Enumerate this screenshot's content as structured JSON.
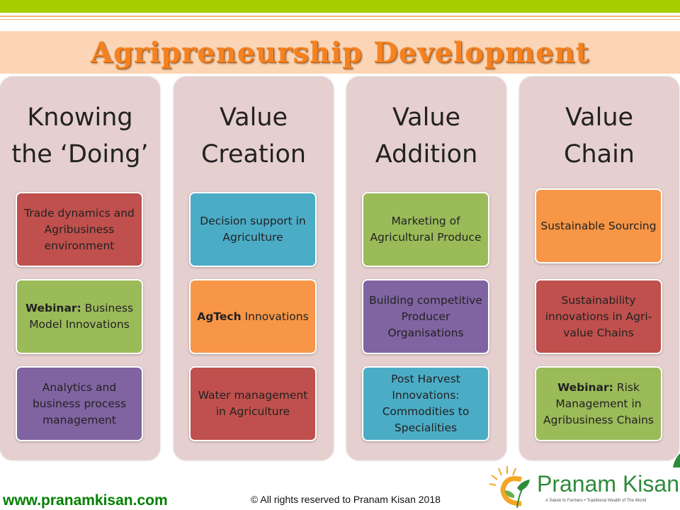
{
  "title": "Agripreneurship Development",
  "columns": [
    {
      "title_lines": [
        "Knowing",
        "the ‘Doing’"
      ],
      "boxes": [
        {
          "bold": "",
          "text": "Trade dynamics and Agribusiness environment",
          "color": "#c0504d"
        },
        {
          "bold": "Webinar:",
          "text": " Business Model Innovations",
          "color": "#9bbb59"
        },
        {
          "bold": "",
          "text": "Analytics and business process management",
          "color": "#8064a2"
        }
      ]
    },
    {
      "title_lines": [
        "Value",
        "Creation"
      ],
      "boxes": [
        {
          "bold": "",
          "text": "Decision support in Agriculture",
          "color": "#4bacc6"
        },
        {
          "bold": "AgTech",
          "text": " Innovations",
          "color": "#f79646"
        },
        {
          "bold": "",
          "text": "Water management in Agriculture",
          "color": "#c0504d"
        }
      ]
    },
    {
      "title_lines": [
        "Value",
        "Addition"
      ],
      "boxes": [
        {
          "bold": "",
          "text": "Marketing of Agricultural Produce",
          "color": "#9bbb59"
        },
        {
          "bold": "",
          "text": "Building competitive Producer Organisations",
          "color": "#8064a2"
        },
        {
          "bold": "",
          "text": "Post Harvest Innovations: Commodities to Specialities",
          "color": "#4bacc6"
        }
      ]
    },
    {
      "title_lines": [
        "Value",
        "Chain"
      ],
      "boxes": [
        {
          "bold": "",
          "text": "Sustainable Sourcing",
          "color": "#f79646"
        },
        {
          "bold": "",
          "text": "Sustainability innovations in Agri-value Chains",
          "color": "#c0504d"
        },
        {
          "bold": "Webinar:",
          "text": " Risk Management in Agribusiness Chains",
          "color": "#9bbb59"
        }
      ]
    }
  ],
  "footer": {
    "website": "www.pranamkisan.com",
    "copyright": "© All rights reserved to Pranam Kisan 2018"
  },
  "logo": {
    "name": "Pranam Kisan",
    "tagline": "A Salute to Farmers • Traditional Wealth of The World",
    "icon": "sun-leaf-logo-icon"
  },
  "colors": {
    "top_bar": "#a6ce00",
    "title_band": "#fbd5b5",
    "title_text": "#f58220",
    "column_bg": "#e6cfcf",
    "website_text": "#008000"
  }
}
